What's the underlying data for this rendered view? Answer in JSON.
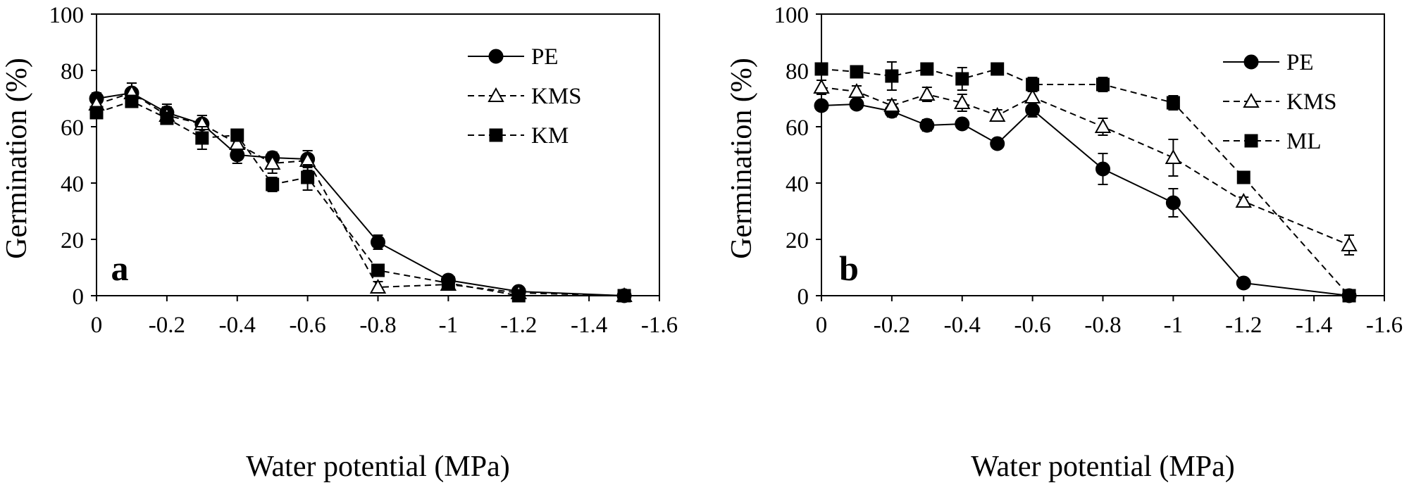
{
  "chart_data": [
    {
      "type": "line",
      "panel_label": "a",
      "xlabel": "Water potential (MPa)",
      "ylabel": "Germination (%)",
      "xlim": [
        0,
        -1.6
      ],
      "ylim": [
        0,
        100
      ],
      "xticks": [
        0,
        -0.2,
        -0.4,
        -0.6,
        -0.8,
        -1,
        -1.2,
        -1.4,
        -1.6
      ],
      "xtick_labels": [
        "0",
        "-0.2",
        "-0.4",
        "-0.6",
        "-0.8",
        "-1",
        "-1.2",
        "-1.4",
        "-1.6"
      ],
      "yticks": [
        0,
        20,
        40,
        60,
        80,
        100
      ],
      "ytick_labels": [
        "0",
        "20",
        "40",
        "60",
        "80",
        "100"
      ],
      "legend_position": "top-right",
      "x": [
        0,
        -0.1,
        -0.2,
        -0.3,
        -0.4,
        -0.5,
        -0.6,
        -0.8,
        -1,
        -1.2,
        -1.5
      ],
      "series": [
        {
          "name": "PE",
          "marker": "filled-circle",
          "line": "solid",
          "values": [
            70,
            72,
            65,
            61,
            50,
            49,
            48.5,
            19,
            5.5,
            1.5,
            0
          ],
          "errors": [
            2,
            3.5,
            3,
            3,
            3,
            2,
            3,
            2.5,
            1,
            0.5,
            0
          ]
        },
        {
          "name": "KMS",
          "marker": "open-triangle",
          "line": "dashed",
          "values": [
            68,
            72,
            64,
            61,
            54,
            47,
            48,
            3,
            4,
            1,
            0
          ],
          "errors": [
            2,
            3.5,
            3,
            3,
            4,
            3.5,
            3.5,
            2,
            1,
            0.5,
            0
          ]
        },
        {
          "name": "KM",
          "marker": "filled-square",
          "line": "dashed",
          "values": [
            65,
            69,
            63,
            56,
            57,
            39.5,
            42,
            9,
            4.5,
            0,
            0
          ],
          "errors": [
            2,
            2,
            2,
            4,
            2,
            2.5,
            4.5,
            2,
            1,
            0,
            0
          ]
        }
      ]
    },
    {
      "type": "line",
      "panel_label": "b",
      "xlabel": "Water potential (MPa)",
      "ylabel": "Germination (%)",
      "xlim": [
        0,
        -1.6
      ],
      "ylim": [
        0,
        100
      ],
      "xticks": [
        0,
        -0.2,
        -0.4,
        -0.6,
        -0.8,
        -1,
        -1.2,
        -1.4,
        -1.6
      ],
      "xtick_labels": [
        "0",
        "-0.2",
        "-0.4",
        "-0.6",
        "-0.8",
        "-1",
        "-1.2",
        "-1.4",
        "-1.6"
      ],
      "yticks": [
        0,
        20,
        40,
        60,
        80,
        100
      ],
      "ytick_labels": [
        "0",
        "20",
        "40",
        "60",
        "80",
        "100"
      ],
      "legend_position": "top-right",
      "x": [
        0,
        -0.1,
        -0.2,
        -0.3,
        -0.4,
        -0.5,
        -0.6,
        -0.8,
        -1,
        -1.2,
        -1.5
      ],
      "series": [
        {
          "name": "PE",
          "marker": "filled-circle",
          "line": "solid",
          "values": [
            67.5,
            68,
            65.5,
            60.5,
            61,
            54,
            66,
            45,
            33,
            4.5,
            0
          ],
          "errors": [
            1,
            1.5,
            2,
            2,
            1,
            1,
            2.5,
            5.5,
            5,
            1,
            0
          ]
        },
        {
          "name": "KMS",
          "marker": "open-triangle",
          "line": "dashed",
          "values": [
            74,
            72.5,
            67.5,
            71.5,
            68.5,
            64,
            70.5,
            60,
            49,
            33.5,
            18
          ],
          "errors": [
            2.5,
            2,
            2,
            2.5,
            3,
            2,
            2,
            3,
            6.5,
            1.5,
            3.5
          ]
        },
        {
          "name": "ML",
          "marker": "filled-square",
          "line": "dashed",
          "values": [
            80.5,
            79.5,
            78,
            80.5,
            77,
            80.5,
            75,
            75,
            68.5,
            42,
            0
          ],
          "errors": [
            1.5,
            2,
            5,
            2,
            4,
            1,
            2.5,
            2.5,
            2.5,
            2,
            0
          ]
        }
      ]
    }
  ]
}
